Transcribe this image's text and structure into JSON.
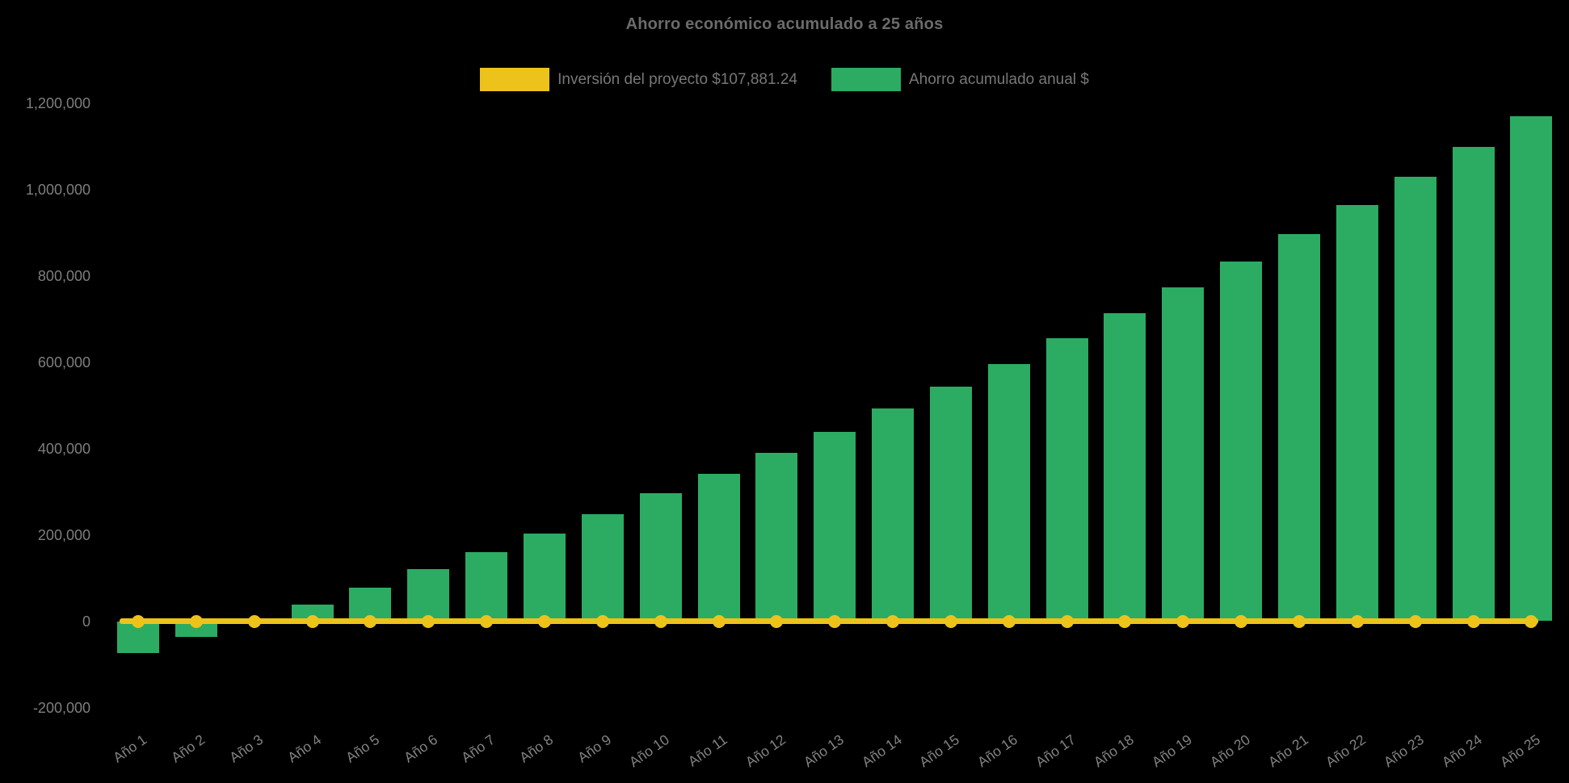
{
  "title": "Ahorro económico acumulado a 25 años",
  "legend": {
    "items": [
      {
        "id": "inversion",
        "label": "Inversión del proyecto $107,881.24",
        "color": "#edc31b"
      },
      {
        "id": "ahorro",
        "label": "Ahorro acumulado anual $",
        "color": "#2bac62"
      }
    ]
  },
  "chart_data": {
    "type": "bar",
    "title": "Ahorro económico acumulado a 25 años",
    "categories": [
      "Año 1",
      "Año 2",
      "Año 3",
      "Año 4",
      "Año 5",
      "Año 6",
      "Año 7",
      "Año 8",
      "Año 9",
      "Año 10",
      "Año 11",
      "Año 12",
      "Año 13",
      "Año 14",
      "Año 15",
      "Año 16",
      "Año 17",
      "Año 18",
      "Año 19",
      "Año 20",
      "Año 21",
      "Año 22",
      "Año 23",
      "Año 24",
      "Año 25"
    ],
    "series": [
      {
        "name": "Ahorro acumulado anual $",
        "type": "bar",
        "color": "#2bac62",
        "values": [
          -73000,
          -36000,
          2000,
          39000,
          77000,
          120000,
          160000,
          202000,
          247000,
          296000,
          341000,
          390000,
          439000,
          492000,
          543000,
          596000,
          655000,
          713000,
          772000,
          833000,
          897000,
          963000,
          1029000,
          1099000,
          1170000
        ]
      },
      {
        "name": "Inversión del proyecto $107,881.24",
        "type": "line",
        "color": "#edc31b",
        "marker": "circle",
        "values": [
          0,
          0,
          0,
          0,
          0,
          0,
          0,
          0,
          0,
          0,
          0,
          0,
          0,
          0,
          0,
          0,
          0,
          0,
          0,
          0,
          0,
          0,
          0,
          0,
          0
        ]
      }
    ],
    "yticks": [
      {
        "value": -200000,
        "label": "-200,000"
      },
      {
        "value": 0,
        "label": "0"
      },
      {
        "value": 200000,
        "label": "200,000"
      },
      {
        "value": 400000,
        "label": "400,000"
      },
      {
        "value": 600000,
        "label": "600,000"
      },
      {
        "value": 800000,
        "label": "800,000"
      },
      {
        "value": 1000000,
        "label": "1,000,000"
      },
      {
        "value": 1200000,
        "label": "1,200,000"
      }
    ],
    "ylim": [
      -200000,
      1200000
    ],
    "xlabel": "",
    "ylabel": "",
    "grid": false,
    "legend_position": "top",
    "background": "#000000",
    "text_color": "#7e7e7e"
  }
}
